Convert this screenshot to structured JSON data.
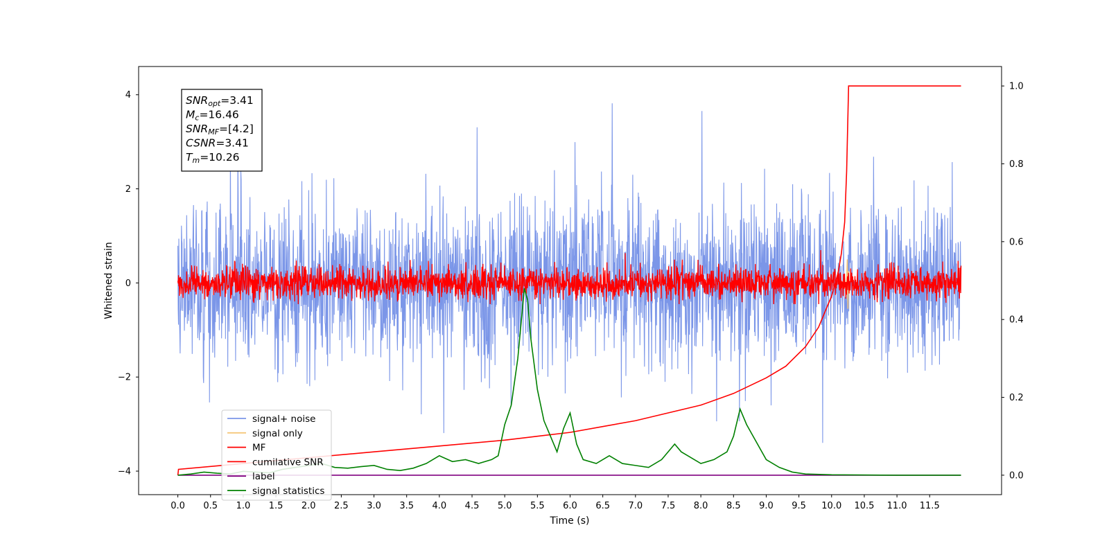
{
  "chart_data": {
    "type": "line",
    "xlabel": "Time (s)",
    "ylabel": "Whitened strain",
    "xlim": [
      -0.6,
      12.6
    ],
    "ylim": [
      -4.5,
      4.6
    ],
    "ylim_right": [
      -0.05,
      1.05
    ],
    "x_ticks": [
      0.0,
      0.5,
      1.0,
      1.5,
      2.0,
      2.5,
      3.0,
      3.5,
      4.0,
      4.5,
      5.0,
      5.5,
      6.0,
      6.5,
      7.0,
      7.5,
      8.0,
      8.5,
      9.0,
      9.5,
      10.0,
      10.5,
      11.0,
      11.5
    ],
    "x_tick_labels": [
      "0.0",
      "0.5",
      "1.0",
      "1.5",
      "2.0",
      "2.5",
      "3.0",
      "3.5",
      "4.0",
      "4.5",
      "5.0",
      "5.5",
      "6.0",
      "6.5",
      "7.0",
      "7.5",
      "8.0",
      "8.5",
      "9.0",
      "9.5",
      "10.0",
      "10.5",
      "11.0",
      "11.5"
    ],
    "y_ticks_left": [
      -4,
      -2,
      0,
      2,
      4
    ],
    "y_tick_labels_left": [
      "−4",
      "−2",
      "0",
      "2",
      "4"
    ],
    "y_ticks_right": [
      0.0,
      0.2,
      0.4,
      0.6,
      0.8,
      1.0
    ],
    "y_tick_labels_right": [
      "0.0",
      "0.2",
      "0.4",
      "0.6",
      "0.8",
      "1.0"
    ],
    "grid": false,
    "legend_position": "lower-left",
    "annotation": [
      {
        "main": "SNR",
        "sub": "opt",
        "value": "=3.41"
      },
      {
        "main": "M",
        "sub": "c",
        "value": "=16.46"
      },
      {
        "main": "SNR",
        "sub": "MF",
        "value": "=[4.2]"
      },
      {
        "main": "CSNR",
        "sub": "",
        "value": "=3.41"
      },
      {
        "main": "T",
        "sub": "m",
        "value": "=10.26"
      }
    ],
    "noise_envelope": {
      "signal_noise_range": [
        -2.0,
        2.0
      ],
      "signal_noise_peak": [
        -3.4,
        4.2
      ],
      "mf_range": [
        -0.35,
        0.45
      ],
      "mf_peak": [
        -0.45,
        1.0
      ]
    },
    "series": [
      {
        "name": "signal+ noise",
        "axis": "left",
        "color": "#7b96e8",
        "x_range": [
          0.0,
          11.98
        ]
      },
      {
        "name": "signal only",
        "axis": "left",
        "color": "#f5c77a",
        "x": [
          10.1,
          10.15,
          10.2,
          10.22,
          10.24,
          10.25,
          10.26,
          10.27,
          10.28
        ],
        "y": [
          0.02,
          -0.05,
          0.1,
          -0.3,
          0.5,
          -0.55,
          0.25,
          -0.1,
          0.0
        ]
      },
      {
        "name": "MF",
        "axis": "left",
        "color": "#ff0000",
        "x_range": [
          0.0,
          11.98
        ]
      },
      {
        "name": "cumilative SNR",
        "axis": "right",
        "color": "#ff0000",
        "x": [
          0.0,
          0.01,
          1.0,
          2.0,
          3.0,
          4.0,
          5.0,
          5.5,
          6.0,
          6.5,
          7.0,
          7.5,
          8.0,
          8.5,
          9.0,
          9.3,
          9.6,
          9.8,
          10.0,
          10.1,
          10.15,
          10.2,
          10.23,
          10.26,
          11.98
        ],
        "y": [
          0.0,
          0.015,
          0.03,
          0.045,
          0.06,
          0.075,
          0.09,
          0.1,
          0.11,
          0.125,
          0.14,
          0.16,
          0.18,
          0.21,
          0.25,
          0.28,
          0.33,
          0.38,
          0.46,
          0.52,
          0.57,
          0.65,
          0.78,
          1.0,
          1.0
        ]
      },
      {
        "name": "label",
        "axis": "right",
        "color": "#800080",
        "x": [
          0.0,
          11.98
        ],
        "y": [
          0.0,
          0.0
        ]
      },
      {
        "name": "signal statistics",
        "axis": "right",
        "color": "#008000",
        "x": [
          0.0,
          0.2,
          0.4,
          0.6,
          0.8,
          1.0,
          1.2,
          1.4,
          1.6,
          1.8,
          2.0,
          2.2,
          2.4,
          2.6,
          2.8,
          3.0,
          3.2,
          3.4,
          3.6,
          3.8,
          4.0,
          4.2,
          4.4,
          4.6,
          4.8,
          4.9,
          5.0,
          5.1,
          5.2,
          5.3,
          5.35,
          5.4,
          5.5,
          5.6,
          5.7,
          5.8,
          5.9,
          6.0,
          6.1,
          6.2,
          6.4,
          6.6,
          6.8,
          7.0,
          7.2,
          7.4,
          7.6,
          7.7,
          7.8,
          7.9,
          8.0,
          8.2,
          8.4,
          8.5,
          8.6,
          8.7,
          8.8,
          9.0,
          9.2,
          9.4,
          9.6,
          10.0,
          11.0,
          11.98
        ],
        "y": [
          0.0,
          0.003,
          0.008,
          0.005,
          0.003,
          0.01,
          0.008,
          0.006,
          0.015,
          0.02,
          0.025,
          0.03,
          0.02,
          0.018,
          0.022,
          0.025,
          0.015,
          0.012,
          0.018,
          0.03,
          0.05,
          0.035,
          0.04,
          0.03,
          0.04,
          0.05,
          0.13,
          0.18,
          0.3,
          0.48,
          0.45,
          0.35,
          0.22,
          0.14,
          0.1,
          0.06,
          0.12,
          0.16,
          0.08,
          0.04,
          0.03,
          0.05,
          0.03,
          0.025,
          0.02,
          0.04,
          0.08,
          0.06,
          0.05,
          0.04,
          0.03,
          0.04,
          0.06,
          0.1,
          0.17,
          0.13,
          0.1,
          0.04,
          0.02,
          0.008,
          0.003,
          0.001,
          0.0,
          0.0
        ]
      }
    ]
  }
}
